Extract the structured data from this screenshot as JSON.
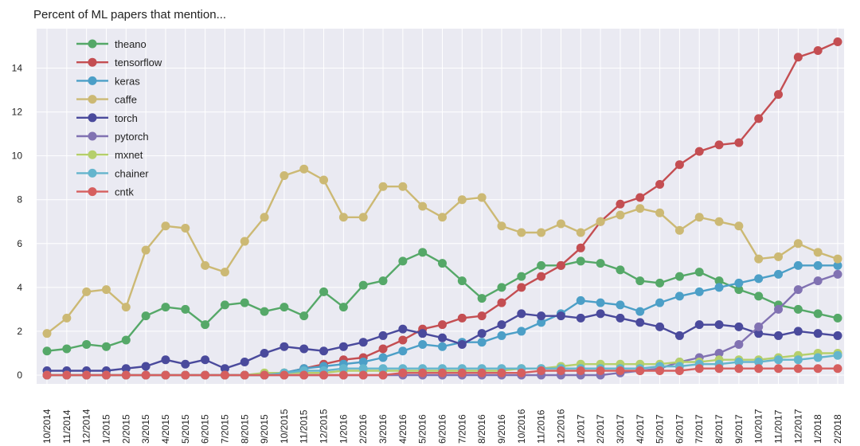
{
  "chart_data": {
    "type": "line",
    "title": "Percent of ML papers that mention...",
    "xlabel": "",
    "ylabel": "",
    "ylim": [
      -0.4,
      15.8
    ],
    "yticks": [
      0,
      2,
      4,
      6,
      8,
      10,
      12,
      14
    ],
    "grid": true,
    "legend_position": "top-left",
    "categories": [
      "10/2014",
      "11/2014",
      "12/2014",
      "1/2015",
      "2/2015",
      "3/2015",
      "4/2015",
      "5/2015",
      "6/2015",
      "7/2015",
      "8/2015",
      "9/2015",
      "10/2015",
      "11/2015",
      "12/2015",
      "1/2016",
      "2/2016",
      "3/2016",
      "4/2016",
      "5/2016",
      "6/2016",
      "7/2016",
      "8/2016",
      "9/2016",
      "10/2016",
      "11/2016",
      "12/2016",
      "1/2017",
      "2/2017",
      "3/2017",
      "4/2017",
      "5/2017",
      "6/2017",
      "7/2017",
      "8/2017",
      "9/2017",
      "10/2017",
      "11/2017",
      "12/2017",
      "1/2018",
      "2/2018"
    ],
    "series": [
      {
        "name": "theano",
        "color": "#55a868",
        "values": [
          1.1,
          1.2,
          1.4,
          1.3,
          1.6,
          2.7,
          3.1,
          3.0,
          2.3,
          3.2,
          3.3,
          2.9,
          3.1,
          2.7,
          3.8,
          3.1,
          4.1,
          4.3,
          5.2,
          5.6,
          5.1,
          4.3,
          3.5,
          4.0,
          4.5,
          5.0,
          5.0,
          5.2,
          5.1,
          4.8,
          4.3,
          4.2,
          4.5,
          4.7,
          4.3,
          3.9,
          3.6,
          3.2,
          3.0,
          2.8,
          2.6
        ]
      },
      {
        "name": "tensorflow",
        "color": "#c44e52",
        "values": [
          0,
          0,
          0,
          0,
          0,
          0,
          0,
          0,
          0,
          0,
          0,
          0,
          0.1,
          0.3,
          0.5,
          0.7,
          0.8,
          1.2,
          1.6,
          2.1,
          2.3,
          2.6,
          2.7,
          3.3,
          4.0,
          4.5,
          5.0,
          5.8,
          7.0,
          7.8,
          8.1,
          8.7,
          9.6,
          10.2,
          10.5,
          10.6,
          11.7,
          12.8,
          14.5,
          14.8,
          15.2
        ]
      },
      {
        "name": "keras",
        "color": "#4c9fc7",
        "values": [
          0,
          0,
          0,
          0,
          0,
          0,
          0,
          0,
          0,
          0,
          0,
          0,
          0.1,
          0.3,
          0.4,
          0.5,
          0.6,
          0.8,
          1.1,
          1.4,
          1.3,
          1.5,
          1.5,
          1.8,
          2.0,
          2.4,
          2.8,
          3.4,
          3.3,
          3.2,
          2.9,
          3.3,
          3.6,
          3.8,
          4.0,
          4.2,
          4.4,
          4.6,
          5.0,
          5.0,
          5.0
        ]
      },
      {
        "name": "caffe",
        "color": "#ccb974",
        "values": [
          1.9,
          2.6,
          3.8,
          3.9,
          3.1,
          5.7,
          6.8,
          6.7,
          5.0,
          4.7,
          6.1,
          7.2,
          9.1,
          9.4,
          8.9,
          7.2,
          7.2,
          8.6,
          8.6,
          7.7,
          7.2,
          8.0,
          8.1,
          6.8,
          6.5,
          6.5,
          6.9,
          6.5,
          7.0,
          7.3,
          7.6,
          7.4,
          6.6,
          7.2,
          7.0,
          6.8,
          5.3,
          5.4,
          6.0,
          5.6,
          5.3
        ]
      },
      {
        "name": "torch",
        "color": "#4a4a9c",
        "values": [
          0.2,
          0.2,
          0.2,
          0.2,
          0.3,
          0.4,
          0.7,
          0.5,
          0.7,
          0.3,
          0.6,
          1.0,
          1.3,
          1.2,
          1.1,
          1.3,
          1.5,
          1.8,
          2.1,
          1.9,
          1.7,
          1.4,
          1.9,
          2.3,
          2.8,
          2.7,
          2.7,
          2.6,
          2.8,
          2.6,
          2.4,
          2.2,
          1.8,
          2.3,
          2.3,
          2.2,
          1.9,
          1.8,
          2.0,
          1.9,
          1.8
        ]
      },
      {
        "name": "pytorch",
        "color": "#8172b2",
        "values": [
          0,
          0,
          0,
          0,
          0,
          0,
          0,
          0,
          0,
          0,
          0,
          0,
          0,
          0,
          0,
          0,
          0,
          0,
          0,
          0,
          0,
          0,
          0,
          0,
          0,
          0,
          0,
          0,
          0,
          0.1,
          0.2,
          0.3,
          0.6,
          0.8,
          1.0,
          1.4,
          2.2,
          3.0,
          3.9,
          4.3,
          4.6
        ]
      },
      {
        "name": "mxnet",
        "color": "#b5cf6b",
        "values": [
          0,
          0,
          0,
          0,
          0,
          0,
          0,
          0,
          0,
          0,
          0,
          0.1,
          0.1,
          0.1,
          0.1,
          0.2,
          0.2,
          0.2,
          0.2,
          0.2,
          0.2,
          0.2,
          0.2,
          0.2,
          0.3,
          0.3,
          0.4,
          0.5,
          0.5,
          0.5,
          0.5,
          0.5,
          0.6,
          0.6,
          0.7,
          0.7,
          0.7,
          0.8,
          0.9,
          1.0,
          1.0
        ]
      },
      {
        "name": "chainer",
        "color": "#64b5cd",
        "values": [
          0,
          0,
          0,
          0,
          0,
          0,
          0,
          0,
          0,
          0,
          0,
          0,
          0.1,
          0.2,
          0.2,
          0.3,
          0.3,
          0.3,
          0.3,
          0.3,
          0.3,
          0.3,
          0.3,
          0.3,
          0.3,
          0.3,
          0.3,
          0.3,
          0.3,
          0.3,
          0.3,
          0.4,
          0.4,
          0.5,
          0.5,
          0.6,
          0.6,
          0.7,
          0.7,
          0.8,
          0.9
        ]
      },
      {
        "name": "cntk",
        "color": "#d65f5f",
        "values": [
          0,
          0,
          0,
          0,
          0,
          0,
          0,
          0,
          0,
          0,
          0,
          0,
          0,
          0,
          0,
          0,
          0,
          0,
          0.1,
          0.1,
          0.1,
          0.1,
          0.1,
          0.1,
          0.1,
          0.2,
          0.2,
          0.2,
          0.2,
          0.2,
          0.2,
          0.2,
          0.2,
          0.3,
          0.3,
          0.3,
          0.3,
          0.3,
          0.3,
          0.3,
          0.3
        ]
      }
    ]
  }
}
